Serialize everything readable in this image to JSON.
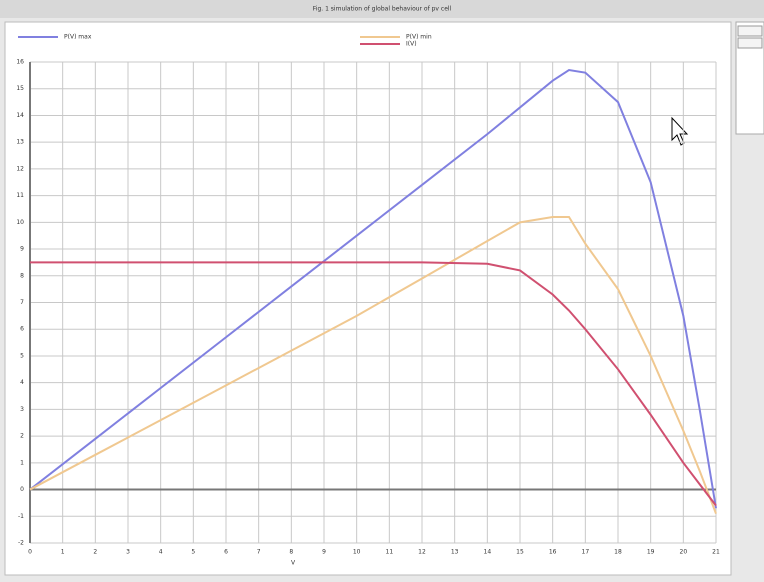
{
  "chart_data": {
    "type": "line",
    "title": "Fig. 1 simulation of global behaviour of pv cell",
    "xlabel": "V",
    "x": [
      0,
      2,
      4,
      6,
      8,
      10,
      12,
      14,
      15,
      16,
      16.5,
      17,
      18,
      19,
      20,
      20.5,
      21
    ],
    "series": [
      {
        "name": "P(V) max",
        "color": "#8080e0",
        "values": [
          0,
          1.9,
          3.8,
          5.7,
          7.6,
          9.5,
          11.4,
          13.3,
          14.3,
          15.3,
          15.7,
          15.6,
          14.5,
          11.5,
          6.5,
          3,
          -0.7
        ]
      },
      {
        "name": "P(V) min",
        "color": "#f0c890",
        "values": [
          0,
          1.3,
          2.6,
          3.9,
          5.2,
          6.5,
          7.9,
          9.3,
          10,
          10.2,
          10.2,
          9.2,
          7.5,
          5,
          2.2,
          0.7,
          -0.9
        ]
      },
      {
        "name": "I(V)",
        "color": "#d05070",
        "values": [
          8.5,
          8.5,
          8.5,
          8.5,
          8.5,
          8.5,
          8.5,
          8.45,
          8.2,
          7.3,
          6.7,
          6,
          4.5,
          2.8,
          1,
          0.2,
          -0.6
        ]
      }
    ],
    "xlim": [
      0,
      21
    ],
    "xticks": [
      0,
      1,
      2,
      3,
      4,
      5,
      6,
      7,
      8,
      9,
      10,
      11,
      12,
      13,
      14,
      15,
      16,
      17,
      18,
      19,
      20,
      21
    ],
    "ylim": [
      -2,
      16
    ],
    "yticks": [
      -2,
      -1,
      0,
      1,
      2,
      3,
      4,
      5,
      6,
      7,
      8,
      9,
      10,
      11,
      12,
      13,
      14,
      15,
      16
    ],
    "grid": true
  }
}
